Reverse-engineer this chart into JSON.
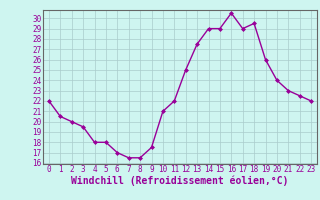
{
  "x": [
    0,
    1,
    2,
    3,
    4,
    5,
    6,
    7,
    8,
    9,
    10,
    11,
    12,
    13,
    14,
    15,
    16,
    17,
    18,
    19,
    20,
    21,
    22,
    23
  ],
  "y": [
    22,
    20.5,
    20,
    19.5,
    18,
    18,
    17,
    16.5,
    16.5,
    17.5,
    21,
    22,
    25,
    27.5,
    29,
    29,
    30.5,
    29,
    29.5,
    26,
    24,
    23,
    22.5,
    22
  ],
  "line_color": "#990099",
  "marker": "D",
  "marker_size": 2,
  "bg_color": "#cef5f0",
  "grid_color": "#aacccc",
  "xlabel": "Windchill (Refroidissement éolien,°C)",
  "xlabel_fontsize": 7,
  "ylim_min": 16,
  "ylim_max": 30.5,
  "xlim_min": -0.5,
  "xlim_max": 23.5,
  "yticks": [
    16,
    17,
    18,
    19,
    20,
    21,
    22,
    23,
    24,
    25,
    26,
    27,
    28,
    29,
    30
  ],
  "xticks": [
    0,
    1,
    2,
    3,
    4,
    5,
    6,
    7,
    8,
    9,
    10,
    11,
    12,
    13,
    14,
    15,
    16,
    17,
    18,
    19,
    20,
    21,
    22,
    23
  ],
  "tick_fontsize": 5.5,
  "linewidth": 1.0,
  "spine_color": "#666666",
  "text_color": "#990099"
}
